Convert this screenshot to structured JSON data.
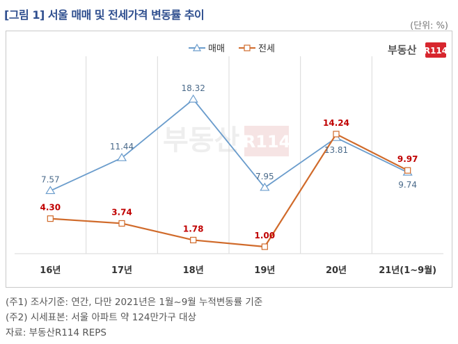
{
  "header": {
    "title": "[그림 1] 서울 매매 및 전세가격 변동률 추이",
    "unit": "(단위: %)"
  },
  "logo": {
    "text": "부동산",
    "badge": "R114"
  },
  "notes": [
    "(주1) 조사기준: 연간, 다만 2021년은 1월~9월 누적변동률 기준",
    "(주2) 시세표본: 서울 아파트 약 124만가구 대상",
    "자료: 부동산R114 REPS"
  ],
  "chart_data": {
    "type": "line",
    "categories": [
      "16년",
      "17년",
      "18년",
      "19년",
      "20년",
      "21년(1~9월)"
    ],
    "series": [
      {
        "name": "매매",
        "values": [
          7.57,
          11.44,
          18.32,
          7.95,
          13.81,
          9.74
        ],
        "color": "#6a9ccc",
        "label_color": "#4a6a8a",
        "marker": "triangle"
      },
      {
        "name": "전세",
        "values": [
          4.3,
          3.74,
          1.78,
          1.0,
          14.24,
          9.97
        ],
        "color": "#d06a2a",
        "label_color": "#c00000",
        "marker": "square"
      }
    ],
    "legend": "top-center",
    "grid": "vertical-category-lines"
  }
}
